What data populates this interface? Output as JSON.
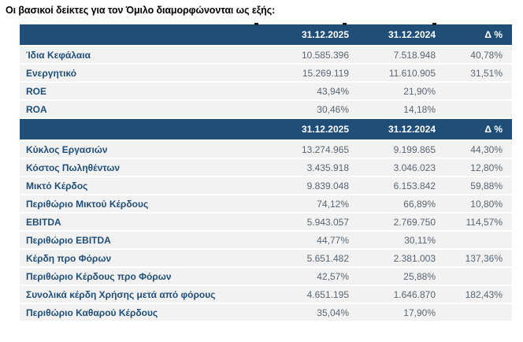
{
  "page": {
    "title": "Οι βασικοί δείκτες για τον Όμιλο διαμορφώνονται ως εξής:"
  },
  "colors": {
    "header_bg": "#1F4E79",
    "header_text": "#FFFFFF",
    "row_bg": "#F2F2F2",
    "label_text": "#1F4E79",
    "value_text": "#5A6672"
  },
  "table": {
    "sections": [
      {
        "header": {
          "label": "",
          "col_2025": "31.12.2025",
          "col_2024": "31.12.2024",
          "col_delta": "Δ %"
        },
        "rows": [
          {
            "label": "Ίδια Κεφάλαια",
            "v2025": "10.585.396",
            "v2024": "7.518.948",
            "delta": "40,78%"
          },
          {
            "label": "Ενεργητικό",
            "v2025": "15.269.119",
            "v2024": "11.610.905",
            "delta": "31,51%"
          },
          {
            "label": "ROE",
            "v2025": "43,94%",
            "v2024": "21,90%",
            "delta": ""
          },
          {
            "label": "ROA",
            "v2025": "30,46%",
            "v2024": "14,18%",
            "delta": ""
          }
        ]
      },
      {
        "header": {
          "label": "",
          "col_2025": "31.12.2025",
          "col_2024": "31.12.2024",
          "col_delta": "Δ %"
        },
        "rows": [
          {
            "label": "Κύκλος Εργασιών",
            "v2025": "13.274.965",
            "v2024": "9.199.865",
            "delta": "44,30%"
          },
          {
            "label": "Κόστος Πωληθέντων",
            "v2025": "3.435.918",
            "v2024": "3.046.023",
            "delta": "12,80%"
          },
          {
            "label": "Μικτό Κέρδος",
            "v2025": "9.839.048",
            "v2024": "6.153.842",
            "delta": "59,88%"
          },
          {
            "label": "Περιθώριο Μικτού Κέρδους",
            "v2025": "74,12%",
            "v2024": "66,89%",
            "delta": "10,80%"
          },
          {
            "label": "EBITDA",
            "v2025": "5.943.057",
            "v2024": "2.769.750",
            "delta": "114,57%"
          },
          {
            "label": "Περιθώριο EBITDA",
            "v2025": "44,77%",
            "v2024": "30,11%",
            "delta": ""
          },
          {
            "label": "Κέρδη προ Φόρων",
            "v2025": "5.651.482",
            "v2024": "2.381.003",
            "delta": "137,36%"
          },
          {
            "label": "Περιθώριο Κέρδους προ Φόρων",
            "v2025": "42,57%",
            "v2024": "25,88%",
            "delta": ""
          },
          {
            "label": "Συνολικά κέρδη Χρήσης μετά από φόρους",
            "v2025": "4.651.195",
            "v2024": "1.646.870",
            "delta": "182,43%"
          },
          {
            "label": "Περιθώριο Καθαρού Κέρδους",
            "v2025": "35,04%",
            "v2024": "17,90%",
            "delta": ""
          }
        ]
      }
    ]
  }
}
